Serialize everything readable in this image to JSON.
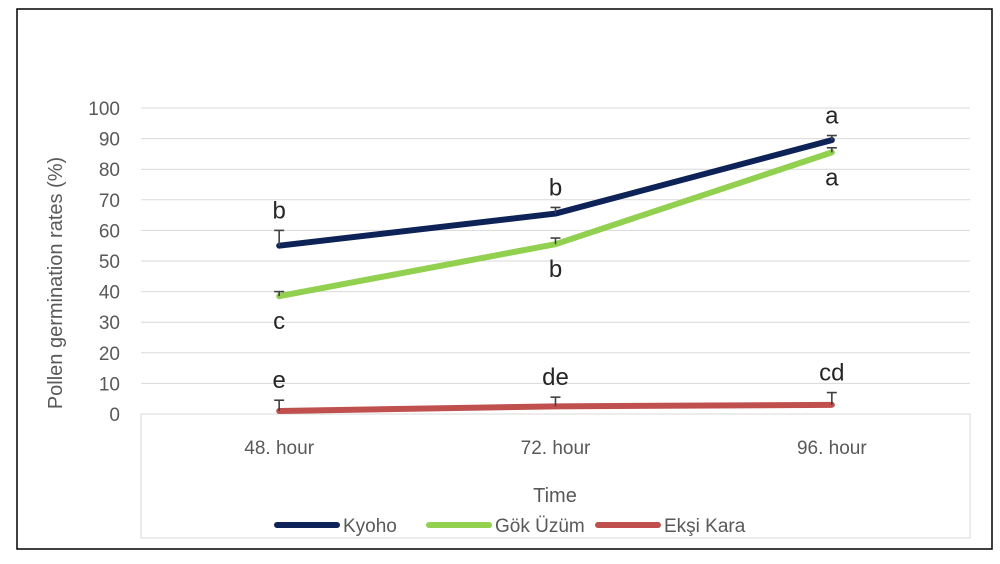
{
  "chart_data": {
    "type": "line",
    "title": "",
    "xlabel": "Time",
    "ylabel": "Pollen germination rates (%)",
    "categories": [
      "48. hour",
      "72. hour",
      "96. hour"
    ],
    "ylim": [
      0,
      100
    ],
    "yticks": [
      0,
      10,
      20,
      30,
      40,
      50,
      60,
      70,
      80,
      90,
      100
    ],
    "grid": true,
    "legend": "bottom",
    "series": [
      {
        "name": "Kyoho",
        "color": "#0d2357",
        "values": [
          55,
          65.5,
          89.5
        ],
        "errors": [
          5,
          2,
          1.5
        ],
        "letters": [
          "b",
          "b",
          "a"
        ],
        "letter_side": [
          "above",
          "above",
          "above"
        ]
      },
      {
        "name": "Gök Üzüm",
        "color": "#92d050",
        "values": [
          38.5,
          55.5,
          85.5
        ],
        "errors": [
          1.5,
          2,
          1.5
        ],
        "letters": [
          "c",
          "b",
          "a"
        ],
        "letter_side": [
          "below",
          "below",
          "below"
        ]
      },
      {
        "name": "Ekşi Kara",
        "color": "#c0504d",
        "values": [
          1,
          2.5,
          3
        ],
        "errors": [
          3.5,
          3,
          4
        ],
        "letters": [
          "e",
          "de",
          "cd"
        ],
        "letter_side": [
          "above",
          "above",
          "above"
        ]
      }
    ]
  }
}
